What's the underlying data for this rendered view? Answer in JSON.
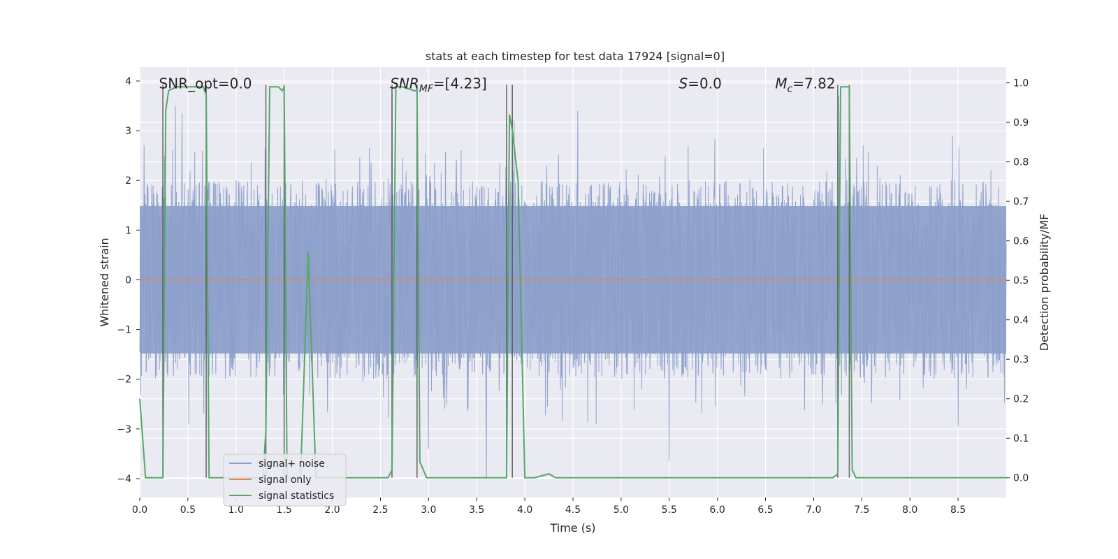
{
  "chart_data": {
    "type": "line",
    "title": "stats at each timestep for test data 17924 [signal=0]",
    "xlabel": "Time (s)",
    "ylabel": "Whitened strain",
    "y2label": "Detection probability/MF",
    "xlim": [
      0,
      9.0
    ],
    "ylim": [
      -4.38,
      4.28
    ],
    "y2lim": [
      -0.05,
      1.04
    ],
    "xticks": [
      "0.0",
      "0.5",
      "1.0",
      "1.5",
      "2.0",
      "2.5",
      "3.0",
      "3.5",
      "4.0",
      "4.5",
      "5.0",
      "5.5",
      "6.0",
      "6.5",
      "7.0",
      "7.5",
      "8.0",
      "8.5"
    ],
    "yticks": [
      "4",
      "3",
      "2",
      "1",
      "0",
      "−1",
      "−2",
      "−3",
      "−4"
    ],
    "y2ticks": [
      "1.0",
      "0.9",
      "0.8",
      "0.7",
      "0.6",
      "0.5",
      "0.4",
      "0.3",
      "0.2",
      "0.1",
      "0.0"
    ],
    "grid": true,
    "legend_position": "lower-left",
    "annotations": [
      {
        "text": "SNR_opt=0.0",
        "x": 0.2,
        "y": 3.85
      },
      {
        "text": "SNR_MF=[4.23]",
        "x": 2.6,
        "y": 3.85
      },
      {
        "text": "S=0.0",
        "x": 5.6,
        "y": 3.85
      },
      {
        "text": "M_c=7.82",
        "x": 6.6,
        "y": 3.85
      }
    ],
    "vlines": [
      0.24,
      0.69,
      1.31,
      1.5,
      2.62,
      2.88,
      3.81,
      3.87,
      7.25,
      7.37
    ],
    "series": [
      {
        "name": "signal+ noise",
        "color": "#8c9fca",
        "axis": "left",
        "sample_rate": 2048,
        "envelope_hi": 1.9,
        "envelope_lo": -1.9,
        "notable_peaks": [
          [
            0.37,
            3.5
          ],
          [
            0.44,
            3.35
          ],
          [
            1.5,
            3.3
          ],
          [
            2.62,
            3.75
          ],
          [
            3.89,
            3.2
          ],
          [
            4.55,
            3.4
          ],
          [
            7.26,
            3.7
          ],
          [
            0.51,
            -2.9
          ],
          [
            3.6,
            -4.0
          ],
          [
            5.5,
            -3.65
          ],
          [
            8.5,
            -2.95
          ],
          [
            3.0,
            -3.4
          ]
        ]
      },
      {
        "name": "signal only",
        "color": "#dd8452",
        "axis": "left",
        "x": [
          0.0,
          9.0
        ],
        "y": [
          0.0,
          0.0
        ]
      },
      {
        "name": "signal statistics",
        "color": "#55a868",
        "axis": "right",
        "x": [
          0.0,
          0.06,
          0.24,
          0.27,
          0.3,
          0.38,
          0.58,
          0.66,
          0.69,
          0.72,
          0.75,
          1.0,
          1.28,
          1.31,
          1.35,
          1.38,
          1.44,
          1.48,
          1.5,
          1.53,
          1.56,
          1.6,
          1.67,
          1.75,
          1.83,
          1.86,
          1.9,
          2.1,
          2.58,
          2.62,
          2.66,
          2.73,
          2.85,
          2.88,
          2.91,
          2.98,
          3.05,
          3.5,
          3.81,
          3.84,
          3.87,
          3.93,
          4.0,
          4.1,
          4.25,
          4.32,
          5.0,
          6.0,
          7.0,
          7.2,
          7.25,
          7.28,
          7.37,
          7.4,
          7.44,
          7.8,
          8.2,
          8.5,
          9.0
        ],
        "y": [
          0.2,
          0.0,
          0.0,
          0.93,
          0.98,
          0.99,
          0.99,
          0.99,
          0.97,
          0.0,
          0.0,
          0.0,
          0.0,
          0.12,
          0.99,
          0.99,
          0.99,
          0.98,
          0.99,
          0.0,
          0.0,
          0.0,
          0.0,
          0.57,
          0.0,
          0.0,
          0.0,
          0.0,
          0.0,
          0.02,
          0.99,
          0.99,
          0.98,
          0.98,
          0.04,
          0.0,
          0.0,
          0.0,
          0.0,
          0.92,
          0.88,
          0.75,
          0.0,
          0.0,
          0.01,
          0.0,
          0.0,
          0.0,
          0.0,
          0.0,
          0.01,
          0.99,
          0.99,
          0.02,
          0.0,
          0.0,
          0.0,
          0.0,
          0.0
        ]
      }
    ]
  }
}
